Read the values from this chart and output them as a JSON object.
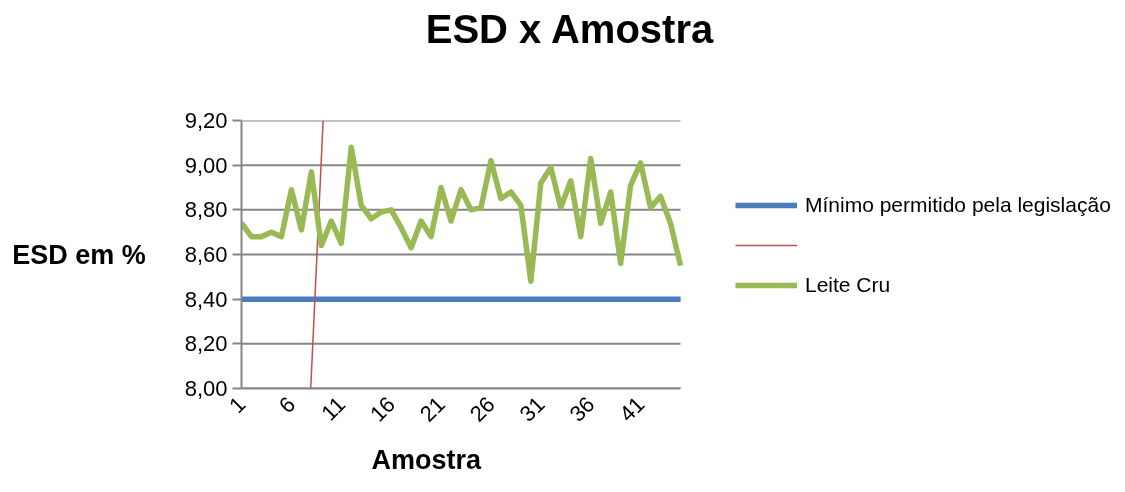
{
  "chart_data": {
    "type": "line",
    "title": "ESD x Amostra",
    "xlabel": "Amostra",
    "ylabel": "ESD em %",
    "x": [
      1,
      2,
      3,
      4,
      5,
      6,
      7,
      8,
      9,
      10,
      11,
      12,
      13,
      14,
      15,
      16,
      17,
      18,
      19,
      20,
      21,
      22,
      23,
      24,
      25,
      26,
      27,
      28,
      29,
      30,
      31,
      32,
      33,
      34,
      35,
      36,
      37,
      38,
      39,
      40,
      41,
      42,
      43,
      44,
      45
    ],
    "xlim": [
      1,
      45
    ],
    "xticks": [
      1,
      6,
      11,
      16,
      21,
      26,
      31,
      36,
      41
    ],
    "ylim": [
      8.0,
      9.2
    ],
    "yticks": [
      {
        "value": 8.0,
        "label": "8,00"
      },
      {
        "value": 8.2,
        "label": "8,20"
      },
      {
        "value": 8.4,
        "label": "8,40"
      },
      {
        "value": 8.6,
        "label": "8,60"
      },
      {
        "value": 8.8,
        "label": "8,80"
      },
      {
        "value": 9.0,
        "label": "9,00"
      },
      {
        "value": 9.2,
        "label": "9,20"
      }
    ],
    "grid": "y",
    "legend": "right",
    "series": [
      {
        "name": "Mínimo permitido pela legislação",
        "color": "#4a7ebb",
        "values": [
          8.4,
          8.4,
          8.4,
          8.4,
          8.4,
          8.4,
          8.4,
          8.4,
          8.4,
          8.4,
          8.4,
          8.4,
          8.4,
          8.4,
          8.4,
          8.4,
          8.4,
          8.4,
          8.4,
          8.4,
          8.4,
          8.4,
          8.4,
          8.4,
          8.4,
          8.4,
          8.4,
          8.4,
          8.4,
          8.4,
          8.4,
          8.4,
          8.4,
          8.4,
          8.4,
          8.4,
          8.4,
          8.4,
          8.4,
          8.4,
          8.4,
          8.4,
          8.4,
          8.4,
          8.4
        ]
      },
      {
        "color": "#c0504d",
        "x": [
          7.94,
          9.18
        ],
        "values": [
          8.0,
          9.2
        ]
      },
      {
        "name": "Leite Cru",
        "color": "#98b954",
        "values": [
          8.74,
          8.68,
          8.68,
          8.7,
          8.68,
          8.89,
          8.71,
          8.97,
          8.64,
          8.75,
          8.65,
          9.08,
          8.82,
          8.76,
          8.79,
          8.8,
          8.72,
          8.63,
          8.75,
          8.68,
          8.9,
          8.75,
          8.89,
          8.8,
          8.81,
          9.02,
          8.85,
          8.88,
          8.82,
          8.48,
          8.92,
          8.99,
          8.81,
          8.93,
          8.68,
          9.03,
          8.74,
          8.88,
          8.56,
          8.91,
          9.01,
          8.81,
          8.86,
          8.74,
          8.55
        ]
      }
    ]
  }
}
